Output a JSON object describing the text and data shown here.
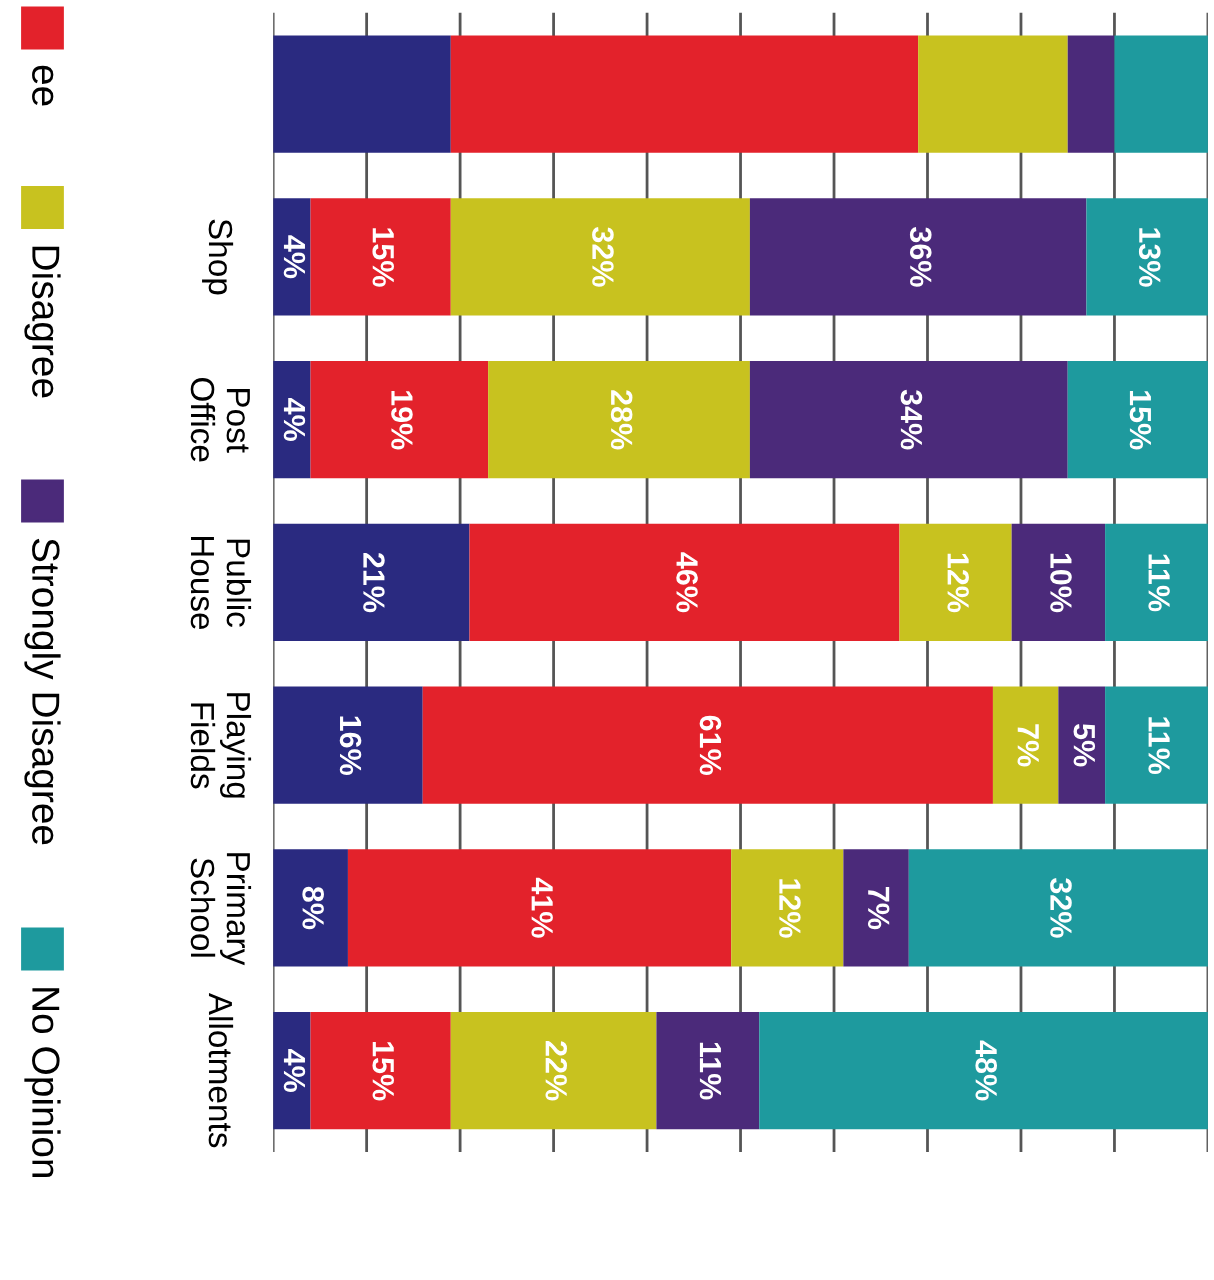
{
  "chart_data": {
    "type": "bar",
    "orientation": "horizontal",
    "stacked": true,
    "categories": [
      null,
      "Shop",
      "Post\nOffice",
      "Public\nHouse",
      "Playing\nFields",
      "Primary\nSchool",
      "Allotments"
    ],
    "series": [
      {
        "color": "#2a2a80",
        "values": [
          19,
          4,
          4,
          21,
          16,
          8,
          4
        ],
        "value_labels": [
          null,
          "4%",
          "4%",
          "21%",
          "16%",
          "8%",
          "4%"
        ]
      },
      {
        "name": "ee",
        "color": "#e3222b",
        "values": [
          50,
          15,
          19,
          46,
          61,
          41,
          15
        ],
        "value_labels": [
          null,
          "15%",
          "19%",
          "46%",
          "61%",
          "41%",
          "15%"
        ]
      },
      {
        "name": "Disagree",
        "color": "#c8c21f",
        "values": [
          16,
          32,
          28,
          12,
          7,
          12,
          22
        ],
        "value_labels": [
          null,
          "32%",
          "28%",
          "12%",
          "7%",
          "12%",
          "22%"
        ]
      },
      {
        "name": "Strongly Disagree",
        "color": "#4b2a7a",
        "values": [
          5,
          36,
          34,
          10,
          5,
          7,
          11
        ],
        "value_labels": [
          null,
          "36%",
          "34%",
          "10%",
          "5%",
          "7%",
          "11%"
        ]
      },
      {
        "name": "No Opinion",
        "color": "#1e9a9e",
        "values": [
          10,
          13,
          15,
          11,
          11,
          32,
          48
        ],
        "value_labels": [
          null,
          "13%",
          "15%",
          "11%",
          "11%",
          "32%",
          "48%"
        ]
      }
    ],
    "xlim": [
      0,
      100
    ],
    "xticks": [
      {
        "value": 0,
        "label": null
      },
      {
        "value": 10,
        "label": null
      },
      {
        "value": 20,
        "label": null
      },
      {
        "value": 30,
        "label": null
      },
      {
        "value": 40,
        "label": null
      },
      {
        "value": 50,
        "label": null
      },
      {
        "value": 60,
        "label": null
      },
      {
        "value": 70,
        "label": null
      },
      {
        "value": 80,
        "label": null
      },
      {
        "value": 90,
        "label": null
      },
      {
        "value": 100,
        "label": null
      }
    ],
    "tick_labels": "y",
    "grid": "x",
    "legend": "left"
  }
}
